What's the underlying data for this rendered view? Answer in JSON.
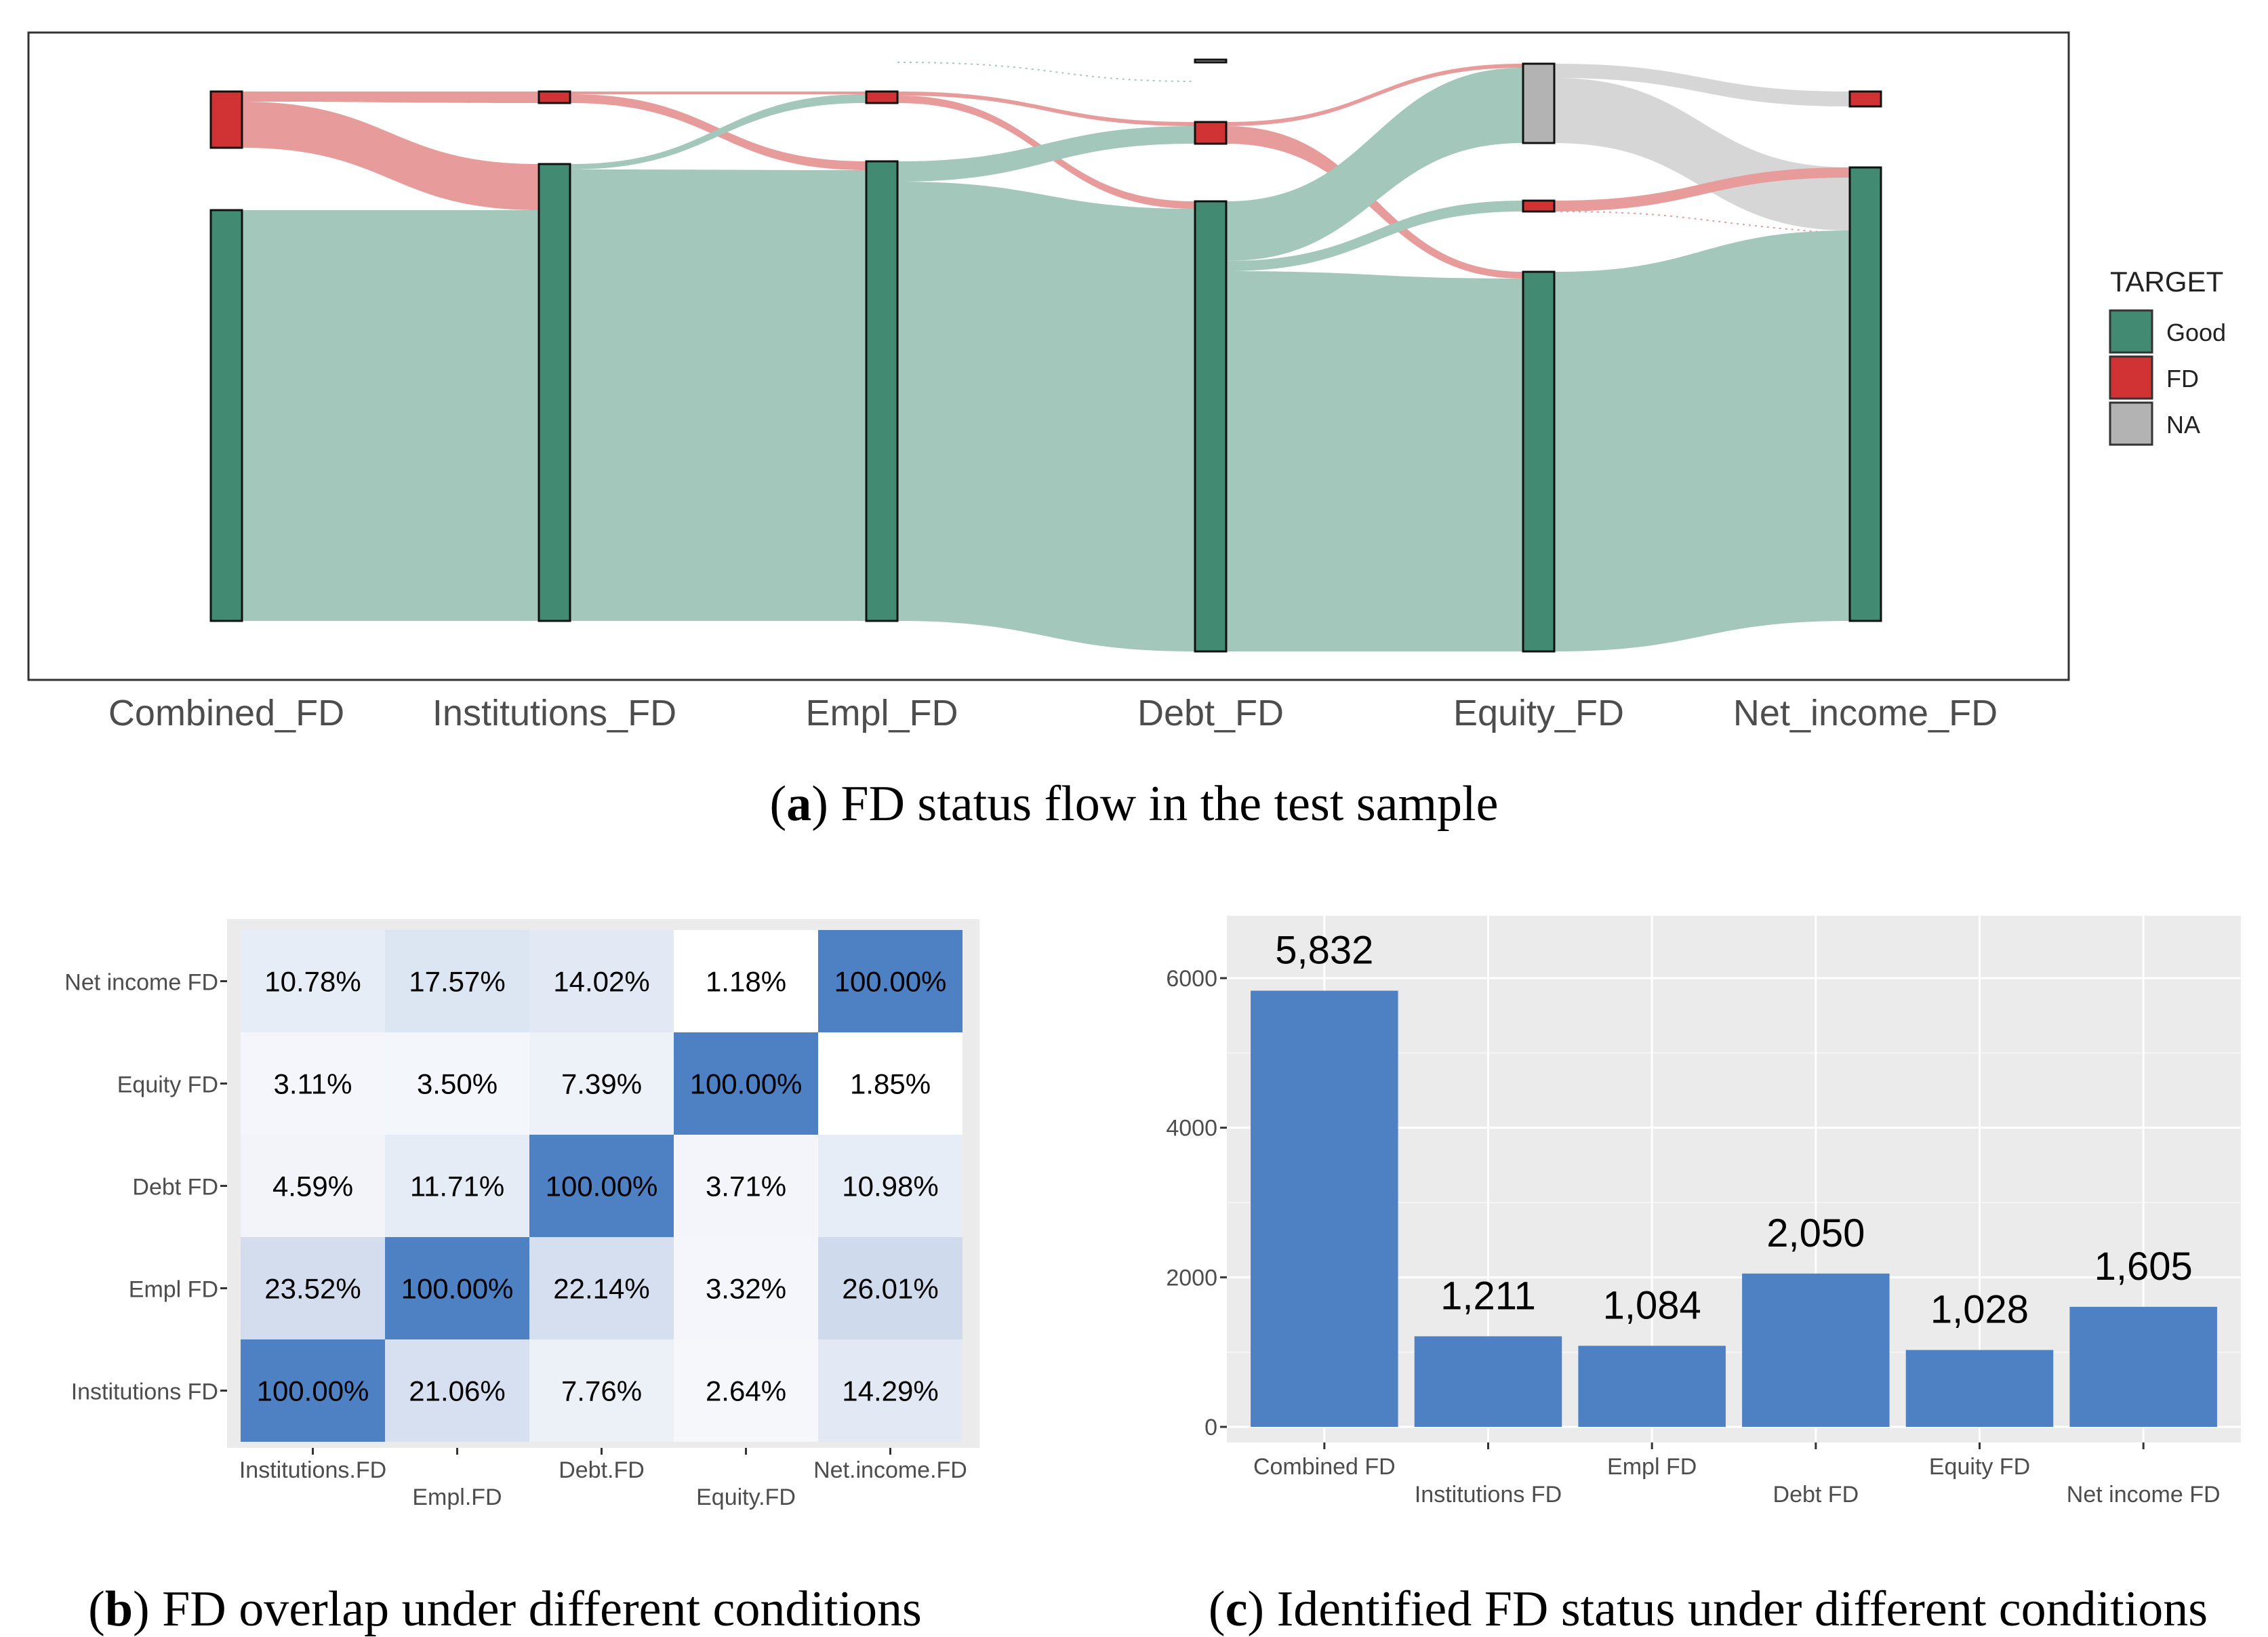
{
  "figure": {
    "colors": {
      "good": "#438a73",
      "good_flow": "#a3c7ba",
      "fd": "#d13334",
      "fd_flow": "#e79b9b",
      "na": "#b3b3b3",
      "na_flow": "#d6d6d6",
      "tile_blue": "#4e80c4",
      "bar_blue": "#4e80c4",
      "panel_bg": "#ebebeb",
      "grid": "#ffffff"
    }
  },
  "chart_data": [
    {
      "id": "a",
      "type": "sankey",
      "caption_letter": "a",
      "caption_text": ") FD status flow in the test sample",
      "caption_open": "(",
      "axes": [
        "Combined_FD",
        "Institutions_FD",
        "Empl_FD",
        "Debt_FD",
        "Equity_FD",
        "Net_income_FD"
      ],
      "legend": {
        "title": "TARGET",
        "entries": [
          {
            "label": "Good",
            "color": "#438a73"
          },
          {
            "label": "FD",
            "color": "#d13334"
          },
          {
            "label": "NA",
            "color": "#b3b3b3"
          }
        ]
      },
      "strata": [
        {
          "axis": 0,
          "category": "FD",
          "share": 0.14
        },
        {
          "axis": 0,
          "category": "Good",
          "share": 0.86
        },
        {
          "axis": 1,
          "category": "FD",
          "share": 0.03
        },
        {
          "axis": 1,
          "category": "Good",
          "share": 0.97
        },
        {
          "axis": 2,
          "category": "FD",
          "share": 0.027
        },
        {
          "axis": 2,
          "category": "Good",
          "share": 0.973
        },
        {
          "axis": 3,
          "category": "NA",
          "share": 0.005
        },
        {
          "axis": 3,
          "category": "FD",
          "share": 0.05
        },
        {
          "axis": 3,
          "category": "Good",
          "share": 0.945
        },
        {
          "axis": 4,
          "category": "NA",
          "share": 0.16
        },
        {
          "axis": 4,
          "category": "FD",
          "share": 0.025
        },
        {
          "axis": 4,
          "category": "Good",
          "share": 0.815
        },
        {
          "axis": 5,
          "category": "FD",
          "share": 0.034
        },
        {
          "axis": 5,
          "category": "Good",
          "share": 0.966
        }
      ]
    },
    {
      "id": "b",
      "type": "heatmap",
      "caption_letter": "b",
      "caption_text": ") FD overlap under different conditions",
      "caption_open": "(",
      "x_labels": [
        "Institutions.FD",
        "Empl.FD",
        "Debt.FD",
        "Equity.FD",
        "Net.income.FD"
      ],
      "y_labels": [
        "Net income FD",
        "Equity FD",
        "Debt FD",
        "Empl FD",
        "Institutions FD"
      ],
      "values": [
        [
          10.78,
          17.57,
          14.02,
          1.18,
          100.0
        ],
        [
          3.11,
          3.5,
          7.39,
          100.0,
          1.85
        ],
        [
          4.59,
          11.71,
          100.0,
          3.71,
          10.98
        ],
        [
          23.52,
          100.0,
          22.14,
          3.32,
          26.01
        ],
        [
          100.0,
          21.06,
          7.76,
          2.64,
          14.29
        ]
      ],
      "cell_labels": [
        [
          "10.78%",
          "17.57%",
          "14.02%",
          "1.18%",
          "100.00%"
        ],
        [
          "3.11%",
          "3.50%",
          "7.39%",
          "100.00%",
          "1.85%"
        ],
        [
          "4.59%",
          "11.71%",
          "100.00%",
          "3.71%",
          "10.98%"
        ],
        [
          "23.52%",
          "100.00%",
          "22.14%",
          "3.32%",
          "26.01%"
        ],
        [
          "100.00%",
          "21.06%",
          "7.76%",
          "2.64%",
          "14.29%"
        ]
      ],
      "value_range": [
        0,
        100
      ]
    },
    {
      "id": "c",
      "type": "bar",
      "caption_letter": "c",
      "caption_text": ") Identified FD status under different conditions",
      "caption_open": "(",
      "categories": [
        "Combined FD",
        "Institutions FD",
        "Empl FD",
        "Debt FD",
        "Equity FD",
        "Net income FD"
      ],
      "values": [
        5832,
        1211,
        1084,
        2050,
        1028,
        1605
      ],
      "value_labels": [
        "5,832",
        "1,211",
        "1,084",
        "2,050",
        "1,028",
        "1,605"
      ],
      "ylim": [
        0,
        6500
      ],
      "yticks": [
        0,
        2000,
        4000,
        6000
      ],
      "ytick_labels": [
        "0",
        "2000",
        "4000",
        "6000"
      ],
      "xlabel": "",
      "ylabel": ""
    }
  ]
}
